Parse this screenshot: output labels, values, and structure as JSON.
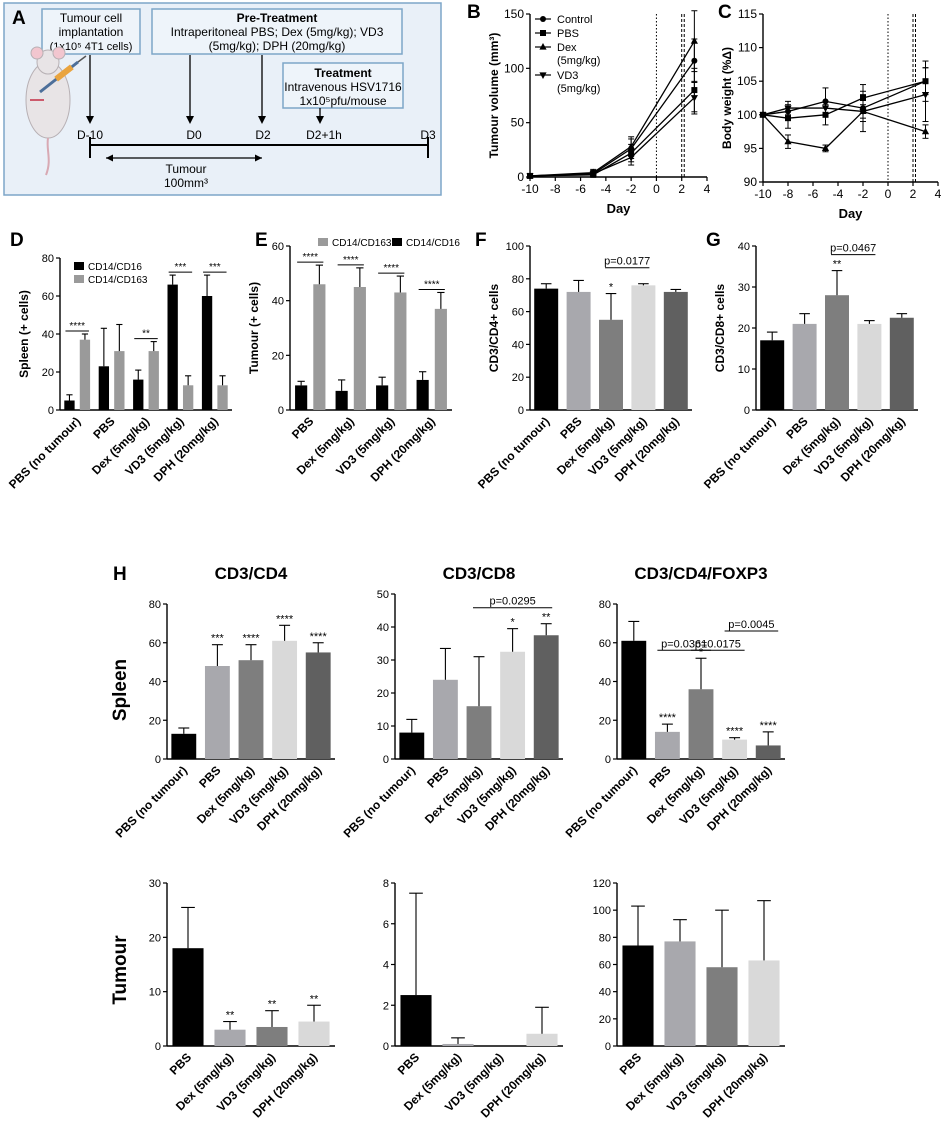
{
  "colors": {
    "black": "#000000",
    "light_gray": "#a8a8ad",
    "mid_gray": "#7e7e7e",
    "pale_gray": "#d9d9d9",
    "dark_gray": "#606060",
    "spleen_gray": "#9a9a9a",
    "schematic_fill": "#e9f0f8",
    "schematic_border": "#7da6c8"
  },
  "panel_letters": {
    "A": "A",
    "B": "B",
    "C": "C",
    "D": "D",
    "E": "E",
    "F": "F",
    "G": "G",
    "H": "H"
  },
  "schematic": {
    "implant_box": [
      "Tumour cell",
      "implantation",
      "(1x10⁵ 4T1 cells)"
    ],
    "pre_title": "Pre-Treatment",
    "pre_lines": [
      "Intraperitoneal PBS; Dex (5mg/kg); VD3",
      "(5mg/kg); DPH (20mg/kg)"
    ],
    "treat_title": "Treatment",
    "treat_lines": [
      "Intravenous HSV1716",
      "1x10⁵pfu/mouse"
    ],
    "timepoints": [
      "D-10",
      "D0",
      "D2",
      "D2+1h",
      "D3"
    ],
    "tumour_label": [
      "Tumour",
      "100mm³"
    ],
    "mouse_icon": "mouse-with-syringe"
  },
  "row_labels": {
    "spleen": "Spleen",
    "tumour": "Tumour"
  },
  "chart_data": [
    {
      "id": "B",
      "type": "line",
      "title": "",
      "xlabel": "Day",
      "ylabel": "Tumour volume (mm³)",
      "xlim": [
        -10,
        4
      ],
      "ylim": [
        0,
        150
      ],
      "xticks": [
        "-10",
        "-8",
        "-6",
        "-4",
        "-2",
        "0",
        "2",
        "4"
      ],
      "yticks": [
        "0",
        "50",
        "100",
        "150"
      ],
      "vlines": [
        0,
        2,
        2.2
      ],
      "legend": [
        "Control",
        "PBS",
        "Dex (5mg/kg)",
        "VD3 (5mg/kg)"
      ],
      "series": [
        {
          "name": "Control",
          "marker": "circle",
          "x": [
            -10,
            -5,
            -2,
            3
          ],
          "y": [
            1,
            3,
            26,
            107
          ],
          "err": [
            1,
            3,
            9,
            20
          ]
        },
        {
          "name": "PBS",
          "marker": "square",
          "x": [
            -10,
            -5,
            -2,
            3
          ],
          "y": [
            1,
            2,
            22,
            80
          ],
          "err": [
            1,
            2,
            8,
            20
          ]
        },
        {
          "name": "Dex (5mg/kg)",
          "marker": "triangle",
          "x": [
            -10,
            -5,
            -2,
            3
          ],
          "y": [
            1,
            4,
            28,
            125
          ],
          "err": [
            1,
            3,
            9,
            28
          ]
        },
        {
          "name": "VD3 (5mg/kg)",
          "marker": "triangle-down",
          "x": [
            -10,
            -5,
            -2,
            3
          ],
          "y": [
            1,
            3,
            18,
            73
          ],
          "err": [
            1,
            2,
            7,
            15
          ]
        }
      ]
    },
    {
      "id": "C",
      "type": "line",
      "title": "",
      "xlabel": "Day",
      "ylabel": "Body weight (%Δ)",
      "xlim": [
        -10,
        4
      ],
      "ylim": [
        90,
        115
      ],
      "xticks": [
        "-10",
        "-8",
        "-6",
        "-4",
        "-2",
        "0",
        "2",
        "4"
      ],
      "yticks": [
        "90",
        "95",
        "100",
        "105",
        "110",
        "115"
      ],
      "vlines": [
        0,
        2,
        2.2
      ],
      "series": [
        {
          "name": "Control",
          "marker": "circle",
          "x": [
            -10,
            -8,
            -5,
            -2,
            3
          ],
          "y": [
            100,
            100.5,
            102,
            101,
            105
          ],
          "err": [
            0,
            1,
            2,
            2,
            3
          ]
        },
        {
          "name": "PBS",
          "marker": "square",
          "x": [
            -10,
            -8,
            -5,
            -2,
            3
          ],
          "y": [
            100,
            99.5,
            100,
            102.5,
            105
          ],
          "err": [
            0,
            1.5,
            1.5,
            2,
            2
          ]
        },
        {
          "name": "Dex (5mg/kg)",
          "marker": "triangle",
          "x": [
            -10,
            -8,
            -5,
            -2,
            3
          ],
          "y": [
            100,
            96,
            95,
            100.5,
            97.5
          ],
          "err": [
            0,
            1,
            0.5,
            3,
            1
          ]
        },
        {
          "name": "VD3 (5mg/kg)",
          "marker": "triangle-down",
          "x": [
            -10,
            -8,
            -5,
            -2,
            3
          ],
          "y": [
            100,
            101,
            101,
            100.5,
            103
          ],
          "err": [
            0,
            1,
            1,
            1,
            4
          ]
        }
      ]
    },
    {
      "id": "D",
      "type": "bar",
      "title": "",
      "xlabel": "",
      "ylabel": "Spleen (+ cells)",
      "ylim": [
        0,
        80
      ],
      "yticks": [
        "0",
        "20",
        "40",
        "60",
        "80"
      ],
      "categories": [
        "PBS (no tumour)",
        "PBS",
        "Dex (5mg/kg)",
        "VD3 (5mg/kg)",
        "DPH (20mg/kg)"
      ],
      "legend_position": "top-left",
      "series": [
        {
          "name": "CD14/CD16",
          "color": "#000000",
          "values": [
            5,
            23,
            16,
            66,
            60
          ],
          "err": [
            3,
            20,
            5,
            5,
            11
          ]
        },
        {
          "name": "CD14/CD163",
          "color": "#9a9a9a",
          "values": [
            37,
            31,
            31,
            13,
            13
          ],
          "err": [
            3,
            14,
            5,
            5,
            5
          ]
        }
      ],
      "annotations": [
        "****",
        "",
        "**",
        "***",
        "***"
      ]
    },
    {
      "id": "E",
      "type": "bar",
      "title": "",
      "xlabel": "",
      "ylabel": "Tumour (+ cells)",
      "ylim": [
        0,
        60
      ],
      "yticks": [
        "0",
        "20",
        "40",
        "60"
      ],
      "categories": [
        "PBS",
        "Dex (5mg/kg)",
        "VD3 (5mg/kg)",
        "DPH (20mg/kg)"
      ],
      "legend_position": "top",
      "series": [
        {
          "name": "CD14/CD16",
          "color": "#000000",
          "values": [
            9,
            7,
            9,
            11
          ],
          "err": [
            1.5,
            4,
            3,
            3
          ]
        },
        {
          "name": "CD14/CD163",
          "color": "#9a9a9a",
          "values": [
            46,
            45,
            43,
            37
          ],
          "err": [
            7,
            7,
            6,
            6
          ]
        }
      ],
      "annotations": [
        "****",
        "****",
        "****",
        "****"
      ]
    },
    {
      "id": "F",
      "type": "bar",
      "title": "",
      "xlabel": "",
      "ylabel": "CD3/CD4+ cells",
      "ylim": [
        0,
        100
      ],
      "yticks": [
        "0",
        "20",
        "40",
        "60",
        "80",
        "100"
      ],
      "categories": [
        "PBS (no tumour)",
        "PBS",
        "Dex (5mg/kg)",
        "VD3 (5mg/kg)",
        "DPH (20mg/kg)"
      ],
      "values": [
        74,
        72,
        55,
        76,
        72
      ],
      "err": [
        3,
        7,
        16,
        1,
        1.5
      ],
      "stars": [
        "",
        "",
        "*",
        "",
        ""
      ],
      "brackets": [
        {
          "from": 2,
          "to": 3,
          "label": "p=0.0177"
        }
      ]
    },
    {
      "id": "G",
      "type": "bar",
      "title": "",
      "xlabel": "",
      "ylabel": "CD3/CD8+ cells",
      "ylim": [
        0,
        40
      ],
      "yticks": [
        "0",
        "10",
        "20",
        "30",
        "40"
      ],
      "categories": [
        "PBS (no tumour)",
        "PBS",
        "Dex (5mg/kg)",
        "VD3 (5mg/kg)",
        "DPH (20mg/kg)"
      ],
      "values": [
        17,
        21,
        28,
        21,
        22.5
      ],
      "err": [
        2,
        2.5,
        6,
        0.8,
        1
      ],
      "stars": [
        "",
        "",
        "**",
        "",
        ""
      ],
      "brackets": [
        {
          "from": 2,
          "to": 3,
          "label": "p=0.0467"
        }
      ]
    },
    {
      "id": "H-spleen-CD3-CD4",
      "type": "bar",
      "title": "CD3/CD4",
      "xlabel": "",
      "ylabel": "",
      "ylim": [
        0,
        80
      ],
      "yticks": [
        "0",
        "20",
        "40",
        "60",
        "80"
      ],
      "categories": [
        "PBS (no tumour)",
        "PBS",
        "Dex (5mg/kg)",
        "VD3 (5mg/kg)",
        "DPH (20mg/kg)"
      ],
      "values": [
        13,
        48,
        51,
        61,
        55
      ],
      "err": [
        3,
        11,
        8,
        8,
        5
      ],
      "stars": [
        "",
        "***",
        "****",
        "****",
        "****"
      ],
      "brackets": []
    },
    {
      "id": "H-spleen-CD3-CD8",
      "type": "bar",
      "title": "CD3/CD8",
      "xlabel": "",
      "ylabel": "",
      "ylim": [
        0,
        50
      ],
      "yticks": [
        "0",
        "10",
        "20",
        "30",
        "40",
        "50"
      ],
      "categories": [
        "PBS (no tumour)",
        "PBS",
        "Dex (5mg/kg)",
        "VD3 (5mg/kg)",
        "DPH (20mg/kg)"
      ],
      "values": [
        8,
        24,
        16,
        32.5,
        37.5
      ],
      "err": [
        4,
        9.5,
        15,
        7,
        3.5
      ],
      "stars": [
        "",
        "",
        "",
        "*",
        "**"
      ],
      "brackets": [
        {
          "from": 2,
          "to": 4,
          "label": "p=0.0295"
        }
      ]
    },
    {
      "id": "H-spleen-CD3-CD4-FOXP3",
      "type": "bar",
      "title": "CD3/CD4/FOXP3",
      "xlabel": "",
      "ylabel": "",
      "ylim": [
        0,
        80
      ],
      "yticks": [
        "0",
        "20",
        "40",
        "60",
        "80"
      ],
      "categories": [
        "PBS (no tumour)",
        "PBS",
        "Dex (5mg/kg)",
        "VD3 (5mg/kg)",
        "DPH (20mg/kg)"
      ],
      "values": [
        61,
        14,
        36,
        10,
        7
      ],
      "err": [
        10,
        4,
        16,
        1,
        7
      ],
      "stars": [
        "",
        "****",
        "*",
        "****",
        "****"
      ],
      "brackets": [
        {
          "from": 1,
          "to": 2,
          "label": "p=0.0361"
        },
        {
          "from": 2,
          "to": 3,
          "label": "p=0.0175"
        },
        {
          "from": 3,
          "to": 4,
          "label": "p=0.0045"
        }
      ]
    },
    {
      "id": "H-tumour-CD3-CD4",
      "type": "bar",
      "title": "",
      "xlabel": "",
      "ylabel": "",
      "ylim": [
        0,
        30
      ],
      "yticks": [
        "0",
        "10",
        "20",
        "30"
      ],
      "categories": [
        "PBS",
        "Dex (5mg/kg)",
        "VD3 (5mg/kg)",
        "DPH (20mg/kg)"
      ],
      "values": [
        18,
        3,
        3.5,
        4.5
      ],
      "err": [
        7.5,
        1.5,
        3,
        3
      ],
      "stars": [
        "",
        "**",
        "**",
        "**"
      ],
      "brackets": []
    },
    {
      "id": "H-tumour-CD3-CD8",
      "type": "bar",
      "title": "",
      "xlabel": "",
      "ylabel": "",
      "ylim": [
        0,
        8
      ],
      "yticks": [
        "0",
        "2",
        "4",
        "6",
        "8"
      ],
      "categories": [
        "PBS",
        "Dex (5mg/kg)",
        "VD3 (5mg/kg)",
        "DPH (20mg/kg)"
      ],
      "values": [
        2.5,
        0.1,
        0,
        0.6
      ],
      "err": [
        5,
        0.3,
        0,
        1.3
      ],
      "stars": [
        "",
        "",
        "",
        ""
      ],
      "brackets": []
    },
    {
      "id": "H-tumour-CD3-CD4-FOXP3",
      "type": "bar",
      "title": "",
      "xlabel": "",
      "ylabel": "",
      "ylim": [
        0,
        120
      ],
      "yticks": [
        "0",
        "20",
        "40",
        "60",
        "80",
        "100",
        "120"
      ],
      "categories": [
        "PBS",
        "Dex (5mg/kg)",
        "VD3 (5mg/kg)",
        "DPH (20mg/kg)"
      ],
      "values": [
        74,
        77,
        58,
        63
      ],
      "err": [
        29,
        16,
        42,
        44
      ],
      "stars": [
        "",
        "",
        "",
        ""
      ],
      "brackets": []
    }
  ]
}
